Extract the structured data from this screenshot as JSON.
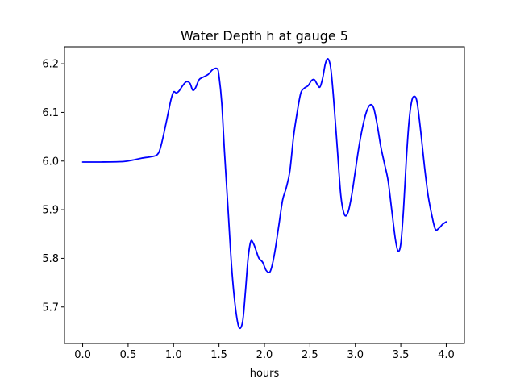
{
  "chart_data": {
    "type": "line",
    "title": "Water Depth h at gauge 5",
    "xlabel": "hours",
    "ylabel": "",
    "xlim": [
      -0.2,
      4.2
    ],
    "ylim": [
      5.625,
      6.235
    ],
    "x_ticks": [
      0.0,
      0.5,
      1.0,
      1.5,
      2.0,
      2.5,
      3.0,
      3.5,
      4.0
    ],
    "x_tick_labels": [
      "0.0",
      "0.5",
      "1.0",
      "1.5",
      "2.0",
      "2.5",
      "3.0",
      "3.5",
      "4.0"
    ],
    "y_ticks": [
      5.7,
      5.8,
      5.9,
      6.0,
      6.1,
      6.2
    ],
    "y_tick_labels": [
      "5.7",
      "5.8",
      "5.9",
      "6.0",
      "6.1",
      "6.2"
    ],
    "grid": false,
    "series": [
      {
        "color": "#0000ff",
        "x": [
          0.0,
          0.2,
          0.45,
          0.55,
          0.65,
          0.75,
          0.82,
          0.86,
          0.92,
          0.97,
          1.0,
          1.03,
          1.06,
          1.1,
          1.14,
          1.18,
          1.21,
          1.24,
          1.28,
          1.32,
          1.38,
          1.43,
          1.48,
          1.5,
          1.53,
          1.56,
          1.6,
          1.64,
          1.68,
          1.72,
          1.76,
          1.79,
          1.82,
          1.85,
          1.88,
          1.91,
          1.94,
          1.98,
          2.02,
          2.06,
          2.09,
          2.12,
          2.16,
          2.2,
          2.24,
          2.28,
          2.32,
          2.36,
          2.4,
          2.44,
          2.48,
          2.52,
          2.55,
          2.58,
          2.61,
          2.64,
          2.67,
          2.7,
          2.73,
          2.76,
          2.8,
          2.84,
          2.88,
          2.92,
          2.96,
          3.0,
          3.04,
          3.08,
          3.12,
          3.16,
          3.2,
          3.24,
          3.28,
          3.32,
          3.36,
          3.4,
          3.44,
          3.47,
          3.5,
          3.53,
          3.56,
          3.59,
          3.62,
          3.65,
          3.68,
          3.72,
          3.76,
          3.8,
          3.84,
          3.88,
          3.92,
          3.96,
          4.0
        ],
        "y": [
          5.998,
          5.998,
          5.999,
          6.002,
          6.006,
          6.009,
          6.013,
          6.03,
          6.08,
          6.125,
          6.142,
          6.14,
          6.144,
          6.155,
          6.163,
          6.16,
          6.146,
          6.15,
          6.167,
          6.172,
          6.178,
          6.188,
          6.19,
          6.175,
          6.12,
          6.02,
          5.9,
          5.78,
          5.7,
          5.658,
          5.67,
          5.73,
          5.8,
          5.835,
          5.83,
          5.815,
          5.8,
          5.792,
          5.775,
          5.772,
          5.79,
          5.82,
          5.87,
          5.92,
          5.945,
          5.98,
          6.05,
          6.1,
          6.14,
          6.15,
          6.155,
          6.166,
          6.167,
          6.158,
          6.152,
          6.17,
          6.2,
          6.21,
          6.19,
          6.13,
          6.03,
          5.93,
          5.89,
          5.895,
          5.93,
          5.98,
          6.03,
          6.07,
          6.1,
          6.115,
          6.11,
          6.075,
          6.03,
          5.995,
          5.96,
          5.9,
          5.84,
          5.815,
          5.83,
          5.9,
          6.0,
          6.08,
          6.123,
          6.133,
          6.12,
          6.06,
          5.99,
          5.93,
          5.89,
          5.86,
          5.862,
          5.87,
          5.875
        ]
      }
    ]
  }
}
